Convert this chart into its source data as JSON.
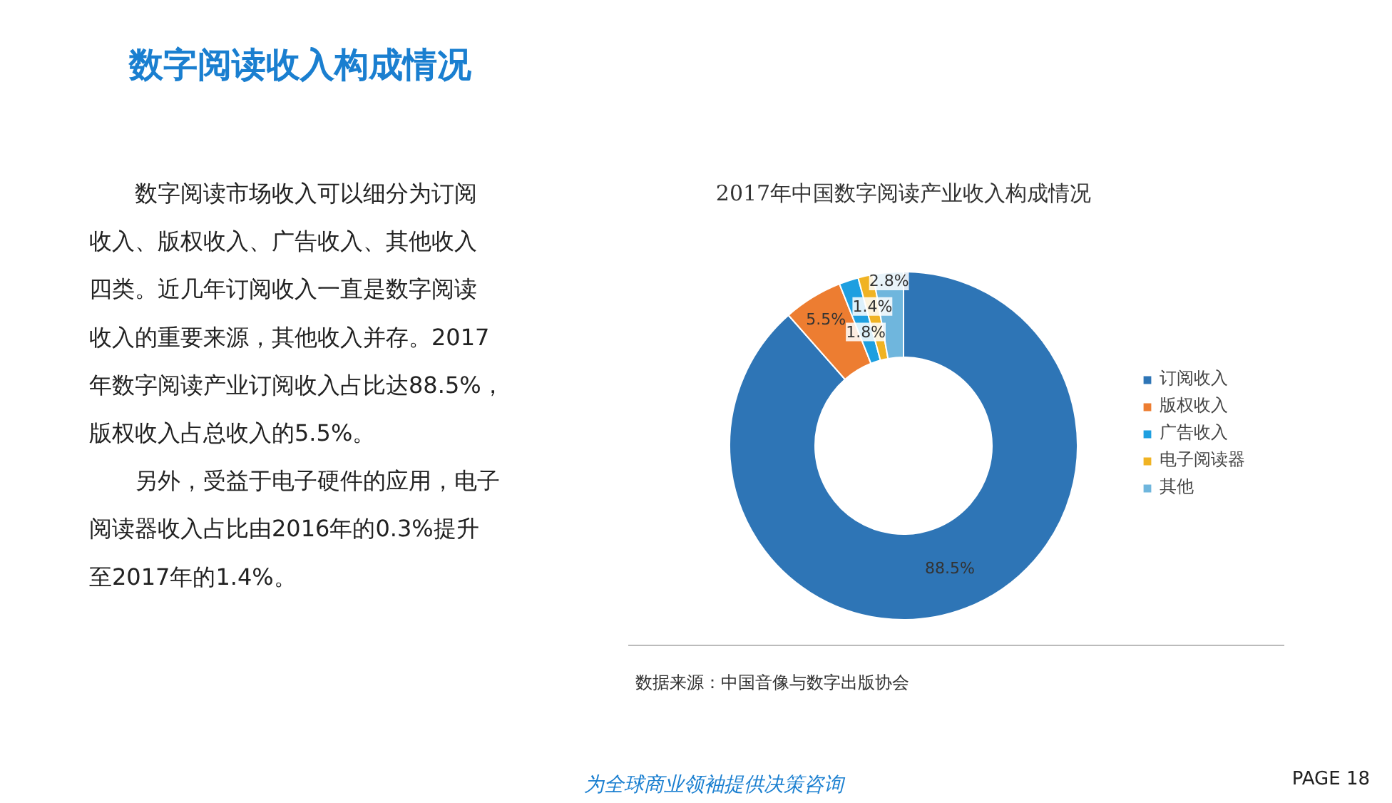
{
  "chart_data": {
    "type": "donut",
    "title": "2017年中国数字阅读产业收入构成情况",
    "categories": [
      "订阅收入",
      "版权收入",
      "广告收入",
      "电子阅读器",
      "其他"
    ],
    "values": [
      88.5,
      5.5,
      1.8,
      1.4,
      2.8
    ],
    "colors": [
      "#2e75b6",
      "#ed7d31",
      "#1e9fe0",
      "#f0b323",
      "#6fb6dd"
    ],
    "value_labels": [
      "88.5%",
      "5.5%",
      "1.8%",
      "1.4%",
      "2.8%"
    ],
    "legend": "right",
    "annotations": [
      "数字阅读收入构成情况",
      "　　数字阅读市场收入可以细分为订阅",
      "收入、版权收入、广告收入、其他收入",
      "四类。近几年订阅收入一直是数字阅读",
      "收入的重要来源，其他收入并存。2017",
      "年数字阅读产业订阅收入占比达88.5%，",
      "版权收入占总收入的5.5%。",
      "　　另外，受益于电子硬件的应用，电子",
      "阅读器收入占比由2016年的0.3%提升",
      "至2017年的1.4%。",
      "数据来源：中国音像与数字出版协会",
      "为全球商业领袖提供决策咨询",
      "PAGE 18"
    ]
  }
}
